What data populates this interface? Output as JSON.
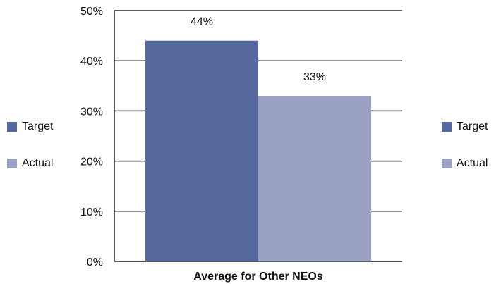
{
  "chart_data": {
    "type": "bar",
    "categories": [
      "Average for Other NEOs"
    ],
    "series": [
      {
        "name": "Target",
        "values": [
          44
        ],
        "label": "44%",
        "color": "#56699f"
      },
      {
        "name": "Actual",
        "values": [
          33
        ],
        "label": "33%",
        "color": "#9aa1c4"
      }
    ],
    "ylim": [
      0,
      50
    ],
    "yticks": [
      "0%",
      "10%",
      "20%",
      "30%",
      "40%",
      "50%"
    ],
    "ytick_values": [
      0,
      10,
      20,
      30,
      40,
      50
    ],
    "grid": true,
    "legend_placement": "left and right",
    "title": "",
    "xlabel": "",
    "ylabel": ""
  },
  "legend": {
    "left": [
      {
        "label": "Target",
        "color": "#56699f"
      },
      {
        "label": "Actual",
        "color": "#9aa1c4"
      }
    ],
    "right": [
      {
        "label": "Target",
        "color": "#56699f"
      },
      {
        "label": "Actual",
        "color": "#9aa1c4"
      }
    ]
  }
}
